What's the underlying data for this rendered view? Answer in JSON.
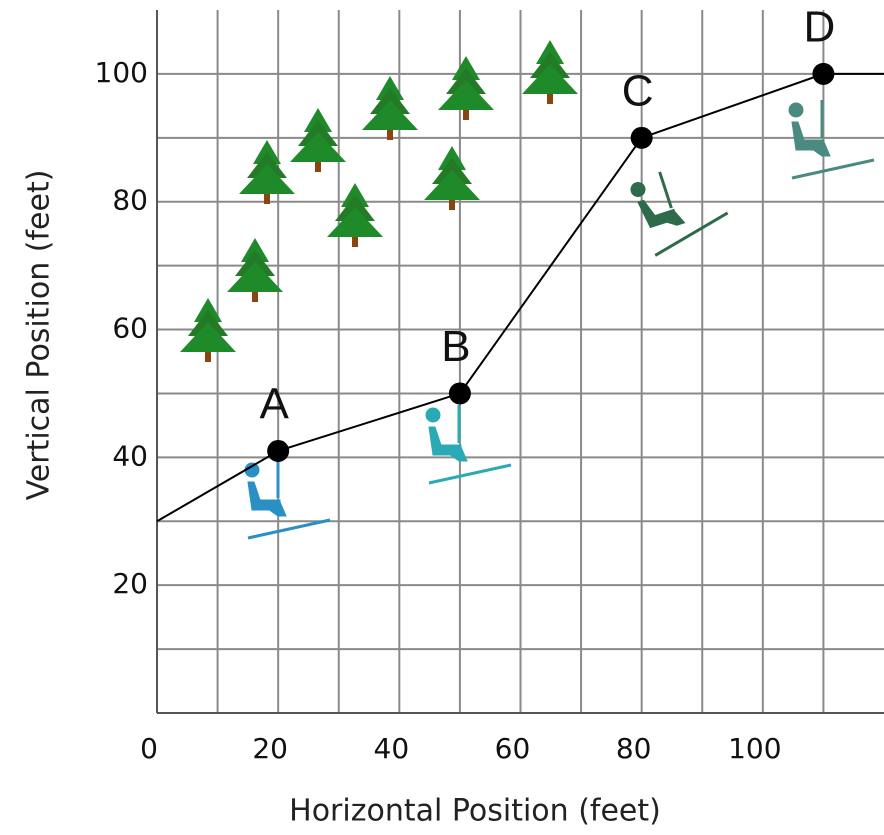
{
  "chart_data": {
    "type": "line",
    "x": [
      0,
      20,
      50,
      80,
      110,
      120
    ],
    "values": [
      30,
      41,
      50,
      90,
      100,
      100
    ],
    "labels": [
      null,
      "A",
      "B",
      "C",
      "D",
      null
    ],
    "color": "#000000",
    "xlabel": "Horizontal Position (feet)",
    "ylabel": "Vertical Position (feet)",
    "xlim": [
      0,
      120
    ],
    "ylim": [
      0,
      110
    ],
    "xticks": [
      0,
      20,
      40,
      60,
      80,
      100
    ],
    "yticks": [
      20,
      40,
      60,
      80,
      100
    ],
    "xgrid": [
      10,
      20,
      30,
      40,
      50,
      60,
      70,
      80,
      90,
      100,
      110
    ],
    "ygrid": [
      10,
      20,
      30,
      40,
      50,
      60,
      70,
      80,
      90,
      100
    ],
    "grid": true
  }
}
